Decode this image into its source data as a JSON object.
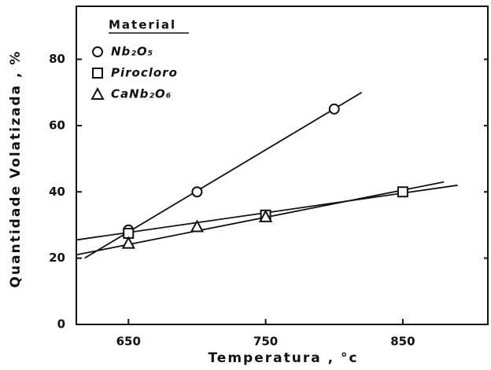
{
  "chart_data": {
    "type": "scatter",
    "xlabel": "Temperatura , °c",
    "ylabel": "Quantidade Volatizada , %",
    "legend_title": "Material",
    "legend": "upper left",
    "xlim": [
      612,
      912
    ],
    "xticks": [
      650,
      750,
      850
    ],
    "ylim": [
      0,
      96
    ],
    "yticks": [
      0,
      20,
      40,
      60,
      80
    ],
    "series": [
      {
        "name": "Nb₂O₅",
        "marker": "circle",
        "color": "#111111",
        "x": [
          650,
          700,
          800
        ],
        "values": [
          28.5,
          40,
          65
        ],
        "fit_x": [
          618,
          820
        ],
        "fit_values": [
          20,
          70
        ]
      },
      {
        "name": "Pirocloro",
        "marker": "square",
        "color": "#111111",
        "x": [
          650,
          750,
          850
        ],
        "values": [
          27.5,
          33,
          40
        ],
        "fit_x": [
          612,
          890
        ],
        "fit_values": [
          25.5,
          42
        ]
      },
      {
        "name": "CaNb₂O₆",
        "marker": "triangle",
        "color": "#111111",
        "x": [
          650,
          700,
          750
        ],
        "values": [
          24.5,
          29.5,
          32.5
        ],
        "fit_x": [
          612,
          880
        ],
        "fit_values": [
          21,
          43
        ]
      }
    ]
  }
}
